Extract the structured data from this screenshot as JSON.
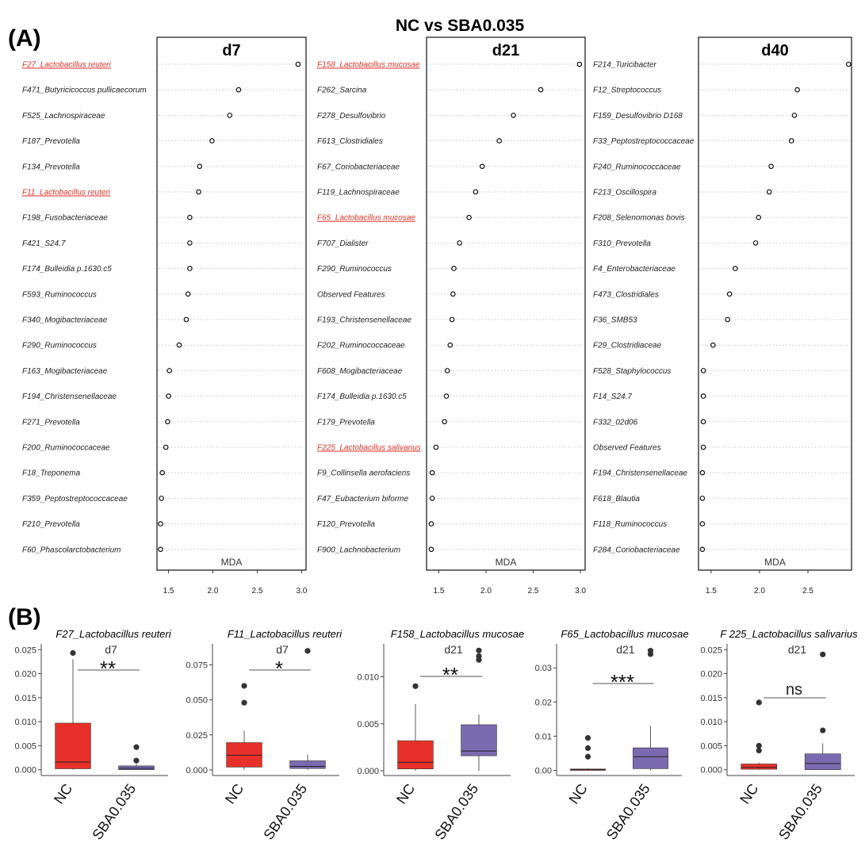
{
  "figure": {
    "title": "NC vs SBA0.035",
    "panel_a_label": "(A)",
    "panel_b_label": "(B)"
  },
  "colors": {
    "highlight": "#e0332a",
    "nc_box": "#e8302a",
    "sba_box": "#7a6ab0",
    "dot_stroke": "#111111",
    "guide": "#c8c8c8"
  },
  "chart_data": [
    {
      "type": "scatter",
      "subtype": "dot-plot",
      "title": "d7",
      "xlabel": "MDA",
      "xlim": [
        1.37,
        3.05
      ],
      "xticks": [
        1.5,
        2.0,
        2.5,
        3.0
      ],
      "xtick_labels": [
        "1.5",
        "2.0",
        "2.5",
        "3.0"
      ],
      "grid": "dotted horizontal guides",
      "categories": [
        "F27_Lactobacillus reuteri",
        "F471_Butyricicoccus pullicaecorum",
        "F525_Lachnospiraceae",
        "F187_Prevotella",
        "F134_Prevotella",
        "F11_Lactobacillus reuteri",
        "F198_Fusobacteriaceae",
        "F421_S24.7",
        "F174_Bulleidia p.1630.c5",
        "F593_Ruminococcus",
        "F340_Mogibacteriaceae",
        "F290_Ruminococcus",
        "F163_Mogibacteriaceae",
        "F194_Christensenellaceae",
        "F271_Prevotella",
        "F200_Ruminococcaceae",
        "F18_Treponema",
        "F359_Peptostreptococcaceae",
        "F210_Prevotella",
        "F60_Phascolarctobacterium"
      ],
      "values": [
        2.96,
        2.29,
        2.19,
        1.99,
        1.85,
        1.84,
        1.74,
        1.74,
        1.74,
        1.72,
        1.7,
        1.62,
        1.51,
        1.5,
        1.49,
        1.47,
        1.43,
        1.42,
        1.41,
        1.41
      ],
      "highlighted": [
        "F27_Lactobacillus reuteri",
        "F11_Lactobacillus reuteri"
      ]
    },
    {
      "type": "scatter",
      "subtype": "dot-plot",
      "title": "d21",
      "xlabel": "MDA",
      "xlim": [
        1.37,
        3.05
      ],
      "xticks": [
        1.5,
        2.0,
        2.5,
        3.0
      ],
      "xtick_labels": [
        "1.5",
        "2.0",
        "2.5",
        "3.0"
      ],
      "grid": "dotted horizontal guides",
      "categories": [
        "F158_Lactobacillus mucosae",
        "F262_Sarcina",
        "F278_Desulfovibrio",
        "F613_Clostridiales",
        "F67_Coriobacteriaceae",
        "F119_Lachnospiraceae",
        "F65_Lactobacillus mucosae",
        "F707_Dialister",
        "F290_Ruminococcus",
        "Observed Features",
        "F193_Christensenellaceae",
        "F202_Ruminococcaceae",
        "F608_Mogibacteriaceae",
        "F174_Bulleidia p.1630.c5",
        "F179_Prevotella",
        "F225_Lactobacillus salivarius",
        "F9_Collinsella aerofaciens",
        "F47_Eubacterium biforme",
        "F120_Prevotella",
        "F900_Lachnobacterium"
      ],
      "values": [
        2.99,
        2.58,
        2.29,
        2.14,
        1.96,
        1.89,
        1.82,
        1.72,
        1.66,
        1.65,
        1.64,
        1.62,
        1.59,
        1.58,
        1.56,
        1.47,
        1.43,
        1.43,
        1.42,
        1.42
      ],
      "highlighted": [
        "F158_Lactobacillus mucosae",
        "F65_Lactobacillus mucosae",
        "F225_Lactobacillus salivarius"
      ]
    },
    {
      "type": "scatter",
      "subtype": "dot-plot",
      "title": "d40",
      "xlabel": "MDA",
      "xlim": [
        1.37,
        2.95
      ],
      "xticks": [
        1.5,
        2.0,
        2.5
      ],
      "xtick_labels": [
        "1.5",
        "2.0",
        "2.5"
      ],
      "grid": "dotted horizontal guides",
      "categories": [
        "F214_Turicibacter",
        "F12_Streptococcus",
        "F159_Desulfovibrio D168",
        "F33_Peptostreptococcaceae",
        "F240_Ruminococcaceae",
        "F213_Oscillospira",
        "F208_Selenomonas bovis",
        "F310_Prevotella",
        "F4_Enterobacteriaceae",
        "F473_Clostridiales",
        "F36_SMB53",
        "F29_Clostridiaceae",
        "F528_Staphylococcus",
        "F14_S24.7",
        "F332_02d06",
        "Observed Features",
        "F194_Christensenellaceae",
        "F618_Blautia",
        "F118_Ruminococcus",
        "F284_Coriobacteriaceae"
      ],
      "values": [
        2.92,
        2.39,
        2.36,
        2.33,
        2.12,
        2.1,
        1.99,
        1.96,
        1.75,
        1.69,
        1.67,
        1.52,
        1.42,
        1.42,
        1.42,
        1.42,
        1.41,
        1.41,
        1.41,
        1.41
      ],
      "highlighted": []
    },
    {
      "type": "box",
      "title": "F27_Lactobacillus reuteri",
      "subtitle": "d7",
      "categories": [
        "NC",
        "SBA0.035"
      ],
      "ylim": [
        -0.0012,
        0.0262
      ],
      "yticks": [
        0.0,
        0.005,
        0.01,
        0.015,
        0.02,
        0.025
      ],
      "ytick_labels": [
        "0.000",
        "0.005",
        "0.010",
        "0.015",
        "0.020",
        "0.025"
      ],
      "boxes": [
        {
          "name": "NC",
          "whisker_low": 0.0,
          "q1": 0.0002,
          "median": 0.0016,
          "q3": 0.0097,
          "whisker_high": 0.023,
          "outliers": [
            0.0243
          ]
        },
        {
          "name": "SBA0.035",
          "whisker_low": 0.0,
          "q1": 0.0,
          "median": 0.0003,
          "q3": 0.0008,
          "whisker_high": 0.0012,
          "outliers": [
            0.0019,
            0.0047
          ]
        }
      ],
      "significance": "**"
    },
    {
      "type": "box",
      "title": "F11_Lactobacillus reuteri",
      "subtitle": "d7",
      "categories": [
        "NC",
        "SBA0.035"
      ],
      "ylim": [
        -0.004,
        0.09
      ],
      "yticks": [
        0.0,
        0.025,
        0.05,
        0.075
      ],
      "ytick_labels": [
        "0.000",
        "0.025",
        "0.050",
        "0.075"
      ],
      "boxes": [
        {
          "name": "NC",
          "whisker_low": 0.0,
          "q1": 0.002,
          "median": 0.0105,
          "q3": 0.0195,
          "whisker_high": 0.028,
          "outliers": [
            0.048,
            0.06
          ]
        },
        {
          "name": "SBA0.035",
          "whisker_low": 0.0,
          "q1": 0.001,
          "median": 0.0025,
          "q3": 0.0065,
          "whisker_high": 0.011,
          "outliers": [
            0.085
          ]
        }
      ],
      "significance": "*"
    },
    {
      "type": "box",
      "title": "F158_Lactobacillus mucosae",
      "subtitle": "d21",
      "categories": [
        "NC",
        "SBA0.035"
      ],
      "ylim": [
        -0.0005,
        0.0135
      ],
      "yticks": [
        0.0,
        0.005,
        0.01
      ],
      "ytick_labels": [
        "0.000",
        "0.005",
        "0.010"
      ],
      "boxes": [
        {
          "name": "NC",
          "whisker_low": 0.0,
          "q1": 0.0002,
          "median": 0.0009,
          "q3": 0.0032,
          "whisker_high": 0.0071,
          "outliers": [
            0.009
          ]
        },
        {
          "name": "SBA0.035",
          "whisker_low": 0.0,
          "q1": 0.0016,
          "median": 0.0021,
          "q3": 0.0049,
          "whisker_high": 0.006,
          "outliers": [
            0.0118,
            0.0122,
            0.0128
          ]
        }
      ],
      "significance": "**"
    },
    {
      "type": "box",
      "title": "F65_Lactobacillus mucosae",
      "subtitle": "d21",
      "categories": [
        "NC",
        "SBA0.035"
      ],
      "ylim": [
        -0.0015,
        0.037
      ],
      "yticks": [
        0.0,
        0.01,
        0.02,
        0.03
      ],
      "ytick_labels": [
        "0.00",
        "0.01",
        "0.02",
        "0.03"
      ],
      "boxes": [
        {
          "name": "NC",
          "whisker_low": 0.0,
          "q1": 0.0,
          "median": 0.0002,
          "q3": 0.0004,
          "whisker_high": 0.0006,
          "outliers": [
            0.004,
            0.0065,
            0.0095
          ]
        },
        {
          "name": "SBA0.035",
          "whisker_low": 0.0,
          "q1": 0.0005,
          "median": 0.004,
          "q3": 0.0066,
          "whisker_high": 0.013,
          "outliers": [
            0.034,
            0.035
          ]
        }
      ],
      "significance": "***"
    },
    {
      "type": "box",
      "title": "F 225_Lactobacillus salivarius",
      "subtitle": "d21",
      "categories": [
        "NC",
        "SBA0.035"
      ],
      "ylim": [
        -0.0012,
        0.0262
      ],
      "yticks": [
        0.0,
        0.005,
        0.01,
        0.015,
        0.02,
        0.025
      ],
      "ytick_labels": [
        "0.000",
        "0.005",
        "0.010",
        "0.015",
        "0.020",
        "0.025"
      ],
      "boxes": [
        {
          "name": "NC",
          "whisker_low": 0.0,
          "q1": 0.0001,
          "median": 0.0005,
          "q3": 0.0012,
          "whisker_high": 0.0015,
          "outliers": [
            0.004,
            0.005,
            0.014
          ]
        },
        {
          "name": "SBA0.035",
          "whisker_low": 0.0,
          "q1": 0.0,
          "median": 0.0013,
          "q3": 0.0033,
          "whisker_high": 0.0055,
          "outliers": [
            0.0082,
            0.024
          ]
        }
      ],
      "significance": "ns"
    }
  ]
}
